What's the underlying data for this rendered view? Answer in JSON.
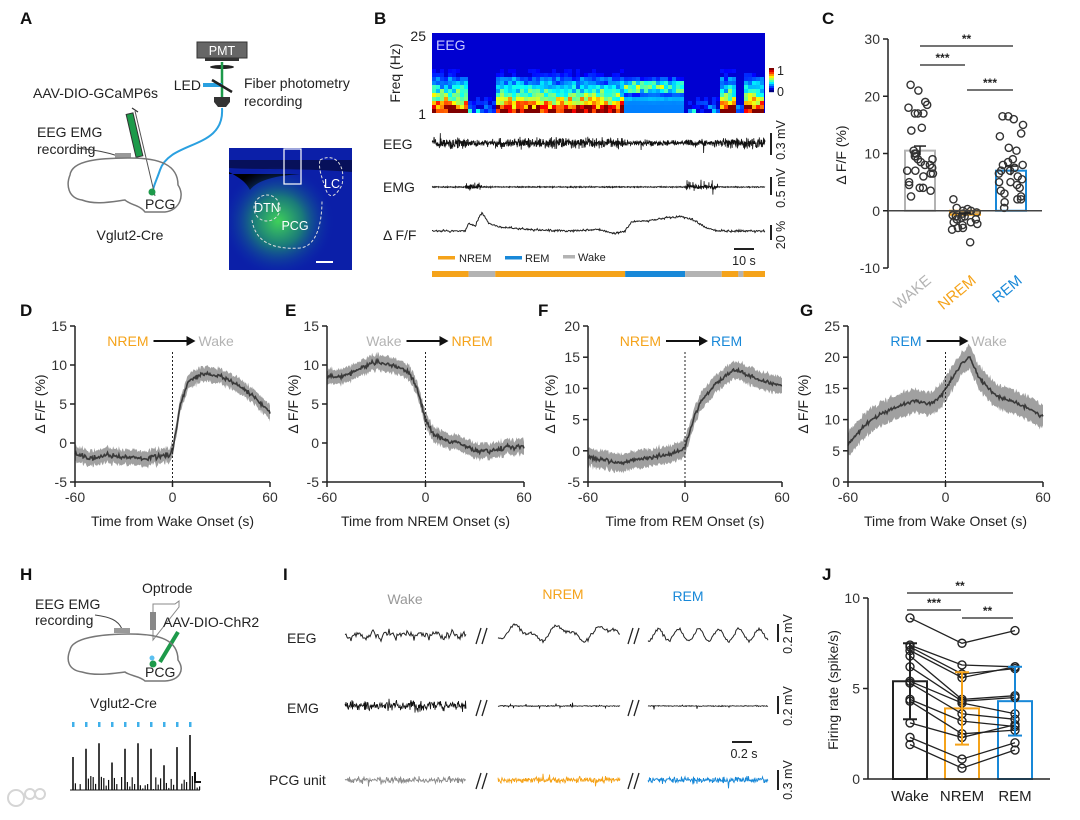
{
  "panel_labels": [
    "A",
    "B",
    "C",
    "D",
    "E",
    "F",
    "G",
    "H",
    "I",
    "J"
  ],
  "state_colors": {
    "wake": "#b3b3b3",
    "nrem": "#f5a31a",
    "rem": "#1888d8"
  },
  "panel_a": {
    "pmt": "PMT",
    "led": "LED",
    "fiber_line1": "Fiber photometry",
    "fiber_line2": "recording",
    "virus": "AAV-DIO-GCaMP6s",
    "eeg_emg_line1": "EEG EMG",
    "eeg_emg_line2": "recording",
    "region": "PCG",
    "mouse": "Vglut2-Cre",
    "histology": {
      "dtn": "DTN",
      "pcg": "PCG",
      "lc": "LC"
    }
  },
  "panel_b": {
    "ylabel": "Freq (Hz)",
    "ymax": "25",
    "ymin": "1",
    "spec_label": "EEG",
    "cbar_max": "1",
    "cbar_min": "0",
    "trace_labels": [
      "EEG",
      "EMG",
      "Δ F/F"
    ],
    "scale_labels": [
      "0.3 mV",
      "0.5 mV",
      "20 %"
    ],
    "time_scale": "10 s",
    "legend": [
      "NREM",
      "REM",
      "Wake"
    ],
    "hypnogram": [
      {
        "state": "nrem",
        "start": 0,
        "end": 11
      },
      {
        "state": "wake",
        "start": 11,
        "end": 19
      },
      {
        "state": "nrem",
        "start": 19,
        "end": 58
      },
      {
        "state": "rem",
        "start": 58,
        "end": 76
      },
      {
        "state": "wake",
        "start": 76,
        "end": 87
      },
      {
        "state": "nrem",
        "start": 87,
        "end": 92
      },
      {
        "state": "wake",
        "start": 92,
        "end": 93.5
      },
      {
        "state": "nrem",
        "start": 93.5,
        "end": 100
      }
    ]
  },
  "panel_h": {
    "optrode": "Optrode",
    "eeg_emg_line1": "EEG EMG",
    "eeg_emg_line2": "recording",
    "virus": "AAV-DIO-ChR2",
    "region": "PCG",
    "mouse": "Vglut2-Cre",
    "spike_heights": [
      0.6,
      0.75,
      0.85,
      0.5,
      0.75,
      0.85,
      0.75,
      0.45,
      0.78,
      1.0
    ]
  },
  "panel_i": {
    "states": [
      "Wake",
      "NREM",
      "REM"
    ],
    "rows": [
      "EEG",
      "EMG",
      "PCG unit"
    ],
    "scales": [
      "0.2 mV",
      "0.2 mV",
      "0.3 mV"
    ],
    "time_scale": "0.2 s"
  },
  "watermark": "大数跨境",
  "chart_data": [
    {
      "panel": "C",
      "type": "bar",
      "categories": [
        "WAKE",
        "NREM",
        "REM"
      ],
      "category_states": [
        "wake",
        "nrem",
        "rem"
      ],
      "means": [
        10.5,
        -0.7,
        7.0
      ],
      "sem": [
        0.8,
        0.3,
        0.8
      ],
      "points": [
        [
          22,
          21,
          19,
          18.5,
          18,
          17,
          17,
          17,
          14.5,
          14,
          10.5,
          10,
          10,
          9.5,
          9.5,
          9,
          9,
          8.5,
          8,
          8,
          7.5,
          7,
          7,
          6.5,
          6.5,
          6,
          5,
          4.5,
          4,
          4,
          3.5,
          2.5
        ],
        [
          2,
          0.5,
          0.3,
          0,
          0,
          -0.3,
          -0.5,
          -0.8,
          -1,
          -1,
          -1.2,
          -1.5,
          -1.5,
          -2,
          -2,
          -2.3,
          -2.5,
          -3,
          -3,
          -3.3,
          -5.5
        ],
        [
          16.5,
          16.5,
          16,
          15,
          13.5,
          13,
          11,
          10.5,
          9,
          8.5,
          8,
          8,
          7.5,
          7,
          7,
          6.5,
          6,
          5.5,
          5,
          5,
          4.5,
          4,
          3.5,
          3,
          2.5,
          2,
          2,
          1.5,
          0.5
        ]
      ],
      "ylabel": "Δ F/F (%)",
      "ylim": [
        -10,
        30
      ],
      "yticks": [
        -10,
        0,
        10,
        20,
        30
      ],
      "significance": [
        {
          "pair": [
            0,
            2
          ],
          "label": "**"
        },
        {
          "pair": [
            0,
            1
          ],
          "label": "***"
        },
        {
          "pair": [
            1,
            2
          ],
          "label": "***"
        }
      ]
    },
    {
      "panel": "D",
      "type": "line",
      "title_from": "NREM",
      "title_to": "Wake",
      "xlabel": "Time from Wake Onset (s)",
      "ylabel": "Δ F/F (%)",
      "xlim": [
        -60,
        60
      ],
      "ylim": [
        -5,
        15
      ],
      "xticks": [
        -60,
        0,
        60
      ],
      "yticks": [
        -5,
        0,
        5,
        10,
        15
      ],
      "x": [
        -60,
        -50,
        -40,
        -30,
        -20,
        -10,
        -2,
        0,
        5,
        10,
        20,
        30,
        40,
        50,
        60
      ],
      "mean": [
        -1.5,
        -2,
        -1.5,
        -1.8,
        -2,
        -1.8,
        -1.5,
        -1,
        5,
        8,
        9,
        8.5,
        7.5,
        6,
        4
      ],
      "sem": 1.0
    },
    {
      "panel": "E",
      "type": "line",
      "title_from": "Wake",
      "title_to": "NREM",
      "xlabel": "Time from NREM Onset (s)",
      "ylabel": "Δ F/F (%)",
      "xlim": [
        -60,
        60
      ],
      "ylim": [
        -5,
        15
      ],
      "xticks": [
        -60,
        0,
        60
      ],
      "yticks": [
        -5,
        0,
        5,
        10,
        15
      ],
      "x": [
        -60,
        -50,
        -40,
        -30,
        -20,
        -10,
        -5,
        0,
        5,
        10,
        20,
        30,
        40,
        50,
        60
      ],
      "mean": [
        8.5,
        8.5,
        9.5,
        10.5,
        10,
        9,
        7,
        3,
        1,
        0.5,
        0,
        -1,
        -1,
        -0.5,
        -0.5
      ],
      "sem": 1.0
    },
    {
      "panel": "F",
      "type": "line",
      "title_from": "NREM",
      "title_to": "REM",
      "xlabel": "Time from REM Onset (s)",
      "ylabel": "Δ F/F (%)",
      "xlim": [
        -60,
        60
      ],
      "ylim": [
        -5,
        20
      ],
      "xticks": [
        -60,
        0,
        60
      ],
      "yticks": [
        -5,
        0,
        5,
        10,
        15,
        20
      ],
      "x": [
        -60,
        -50,
        -40,
        -30,
        -20,
        -10,
        -2,
        0,
        5,
        10,
        20,
        30,
        40,
        50,
        60
      ],
      "mean": [
        -1,
        -1.5,
        -2,
        -1.5,
        -1,
        -0.5,
        0,
        0.5,
        5,
        8,
        11,
        13,
        12,
        11,
        10.5
      ],
      "sem": 1.5
    },
    {
      "panel": "G",
      "type": "line",
      "title_from": "REM",
      "title_to": "Wake",
      "xlabel": "Time from Wake Onset (s)",
      "ylabel": "Δ F/F (%)",
      "xlim": [
        -60,
        60
      ],
      "ylim": [
        0,
        25
      ],
      "xticks": [
        -60,
        0,
        60
      ],
      "yticks": [
        0,
        5,
        10,
        15,
        20,
        25
      ],
      "x": [
        -60,
        -50,
        -40,
        -30,
        -20,
        -10,
        -2,
        0,
        5,
        10,
        15,
        20,
        30,
        40,
        50,
        60
      ],
      "mean": [
        6,
        9,
        11,
        12,
        13,
        12.5,
        14,
        15,
        17,
        19,
        20,
        17,
        14,
        13,
        12,
        10.5
      ],
      "sem": 2.0
    },
    {
      "panel": "J",
      "type": "bar",
      "categories": [
        "Wake",
        "NREM",
        "REM"
      ],
      "category_states": [
        "black",
        "nrem",
        "rem"
      ],
      "means": [
        5.4,
        3.9,
        4.3
      ],
      "sd": [
        2.1,
        2.0,
        1.9
      ],
      "paired_points": [
        [
          8.9,
          7.5,
          8.2
        ],
        [
          7.4,
          6.3,
          6.2
        ],
        [
          7.3,
          5.8,
          6.1
        ],
        [
          7.1,
          5.6,
          6.2
        ],
        [
          6.8,
          4.4,
          4.6
        ],
        [
          6.2,
          4.3,
          4.5
        ],
        [
          5.4,
          4.2,
          3.6
        ],
        [
          5.3,
          3.6,
          3.3
        ],
        [
          4.4,
          3.2,
          2.9
        ],
        [
          4.3,
          2.5,
          2.7
        ],
        [
          3.1,
          2.3,
          3.0
        ],
        [
          2.3,
          1.1,
          2.0
        ],
        [
          1.9,
          0.6,
          1.6
        ]
      ],
      "ylabel": "Firing rate (spike/s)",
      "ylim": [
        0,
        10
      ],
      "yticks": [
        0,
        5,
        10
      ],
      "significance": [
        {
          "pair": [
            0,
            2
          ],
          "label": "**"
        },
        {
          "pair": [
            0,
            1
          ],
          "label": "***"
        },
        {
          "pair": [
            1,
            2
          ],
          "label": "**"
        }
      ]
    }
  ]
}
